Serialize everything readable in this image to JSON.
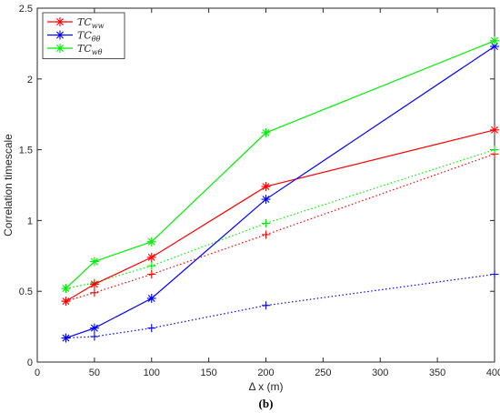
{
  "chart_data": {
    "type": "line",
    "xlabel": "Δ x (m)",
    "ylabel": "Correlation timescale",
    "xlim": [
      0,
      400
    ],
    "ylim": [
      0,
      2.5
    ],
    "xticks": [
      0,
      50,
      100,
      150,
      200,
      250,
      300,
      350,
      400
    ],
    "yticks": [
      0,
      0.5,
      1,
      1.5,
      2,
      2.5
    ],
    "xtick_labels": [
      "0",
      "50",
      "100",
      "150",
      "200",
      "250",
      "300",
      "350",
      "400"
    ],
    "ytick_labels": [
      "0",
      "0.5",
      "1",
      "1.5",
      "2",
      "2.5"
    ],
    "grid": false,
    "legend_position": "top-left",
    "caption": "(b)",
    "series": [
      {
        "name_main": "TC",
        "name_sub": "ww",
        "color": "#ff0000",
        "marker": "star",
        "line": "solid",
        "x": [
          25,
          50,
          100,
          200,
          400
        ],
        "y": [
          0.43,
          0.55,
          0.74,
          1.24,
          1.64
        ]
      },
      {
        "name_main": "TC",
        "name_sub": "θθ",
        "color": "#0000ff",
        "marker": "star",
        "line": "solid",
        "x": [
          25,
          50,
          100,
          200,
          400
        ],
        "y": [
          0.17,
          0.24,
          0.45,
          1.15,
          2.23
        ]
      },
      {
        "name_main": "TC",
        "name_sub": "wθ",
        "color": "#00ee00",
        "marker": "star",
        "line": "solid",
        "x": [
          25,
          50,
          100,
          200,
          400
        ],
        "y": [
          0.52,
          0.71,
          0.85,
          1.62,
          2.27
        ]
      },
      {
        "color": "#ff0000",
        "marker": "plus",
        "line": "dotted",
        "x": [
          25,
          50,
          100,
          200,
          400
        ],
        "y": [
          0.43,
          0.49,
          0.62,
          0.9,
          1.47
        ]
      },
      {
        "color": "#0000ff",
        "marker": "plus",
        "line": "dotted",
        "x": [
          25,
          50,
          100,
          200,
          400
        ],
        "y": [
          0.17,
          0.18,
          0.24,
          0.4,
          0.62
        ]
      },
      {
        "color": "#00ee00",
        "marker": "plus",
        "line": "dotted",
        "x": [
          25,
          50,
          100,
          200,
          400
        ],
        "y": [
          0.52,
          0.56,
          0.68,
          0.98,
          1.5
        ]
      }
    ]
  }
}
